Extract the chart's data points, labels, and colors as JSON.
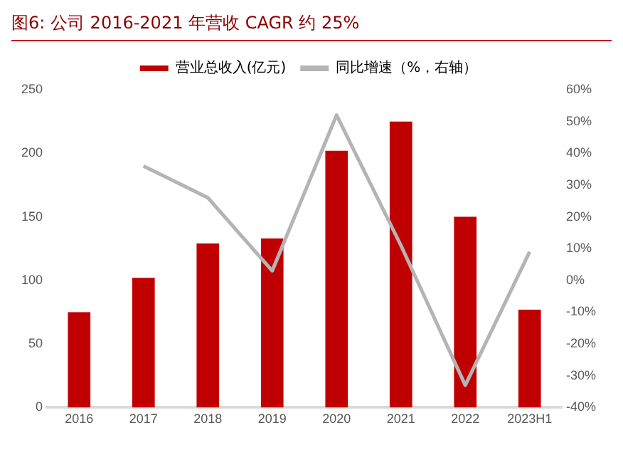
{
  "chart_data": {
    "type": "bar",
    "title": "图6:  公司 2016-2021 年营收 CAGR 约 25%",
    "categories": [
      "2016",
      "2017",
      "2018",
      "2019",
      "2020",
      "2021",
      "2022",
      "2023H1"
    ],
    "series": [
      {
        "name": "营业总收入(亿元)",
        "color": "#c00000",
        "values": [
          75,
          102,
          129,
          133,
          202,
          225,
          150,
          77
        ]
      },
      {
        "name": "同比增速（%，右轴）",
        "type": "line",
        "axis": "y2",
        "color": "#b4b4b4",
        "values": [
          null,
          36,
          26,
          3,
          52,
          11,
          -33,
          9
        ]
      }
    ],
    "ylim": [
      0,
      250
    ],
    "yticks": [
      0,
      50,
      100,
      150,
      200,
      250
    ],
    "y2lim": [
      -40,
      60
    ],
    "y2ticks": [
      {
        "value": -40,
        "label": "-40%"
      },
      {
        "value": -30,
        "label": "-30%"
      },
      {
        "value": -20,
        "label": "-20%"
      },
      {
        "value": -10,
        "label": "-10%"
      },
      {
        "value": 0,
        "label": "0%"
      },
      {
        "value": 10,
        "label": "10%"
      },
      {
        "value": 20,
        "label": "20%"
      },
      {
        "value": 30,
        "label": "30%"
      },
      {
        "value": 40,
        "label": "40%"
      },
      {
        "value": 50,
        "label": "50%"
      },
      {
        "value": 60,
        "label": "60%"
      }
    ],
    "legend": "top",
    "grid": false,
    "marker": "none"
  }
}
